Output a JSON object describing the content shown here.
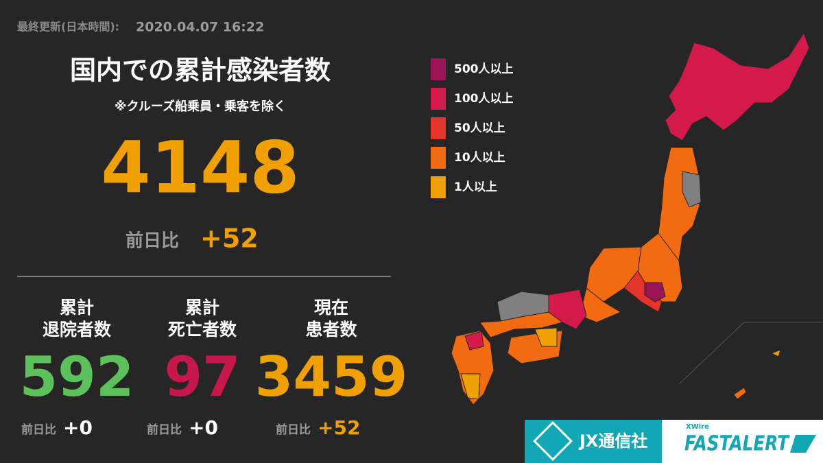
{
  "header": {
    "updated_label": "最終更新(日本時間):",
    "updated": "2020.04.07 16:22"
  },
  "total": {
    "title": "国内での累計感染者数",
    "note": "※クルーズ船乗員・乗客を除く",
    "value": 4148,
    "diff_label": "前日比",
    "diff": "+52"
  },
  "stats": [
    {
      "label_line1": "累計",
      "label_line2": "退院者数",
      "value": 592,
      "diff_label": "前日比",
      "diff": "+0",
      "color": "#5cc15a"
    },
    {
      "label_line1": "累計",
      "label_line2": "死亡者数",
      "value": 97,
      "diff_label": "前日比",
      "diff": "+0",
      "color": "#c8174a"
    },
    {
      "label_line1": "現在",
      "label_line2": "患者数",
      "value": 3459,
      "diff_label": "前日比",
      "diff": "+52",
      "color": "#f0a000"
    }
  ],
  "legend": [
    {
      "label": "500人以上",
      "color": "#9b1458"
    },
    {
      "label": "100人以上",
      "color": "#d41a4a"
    },
    {
      "label": "50人以上",
      "color": "#e5352a"
    },
    {
      "label": "10人以上",
      "color": "#f26b10"
    },
    {
      "label": "1人以上",
      "color": "#f0a000"
    }
  ],
  "logos": {
    "jx": "JX通信社",
    "xwire": "XWire",
    "fastalert": "FASTALERT"
  }
}
